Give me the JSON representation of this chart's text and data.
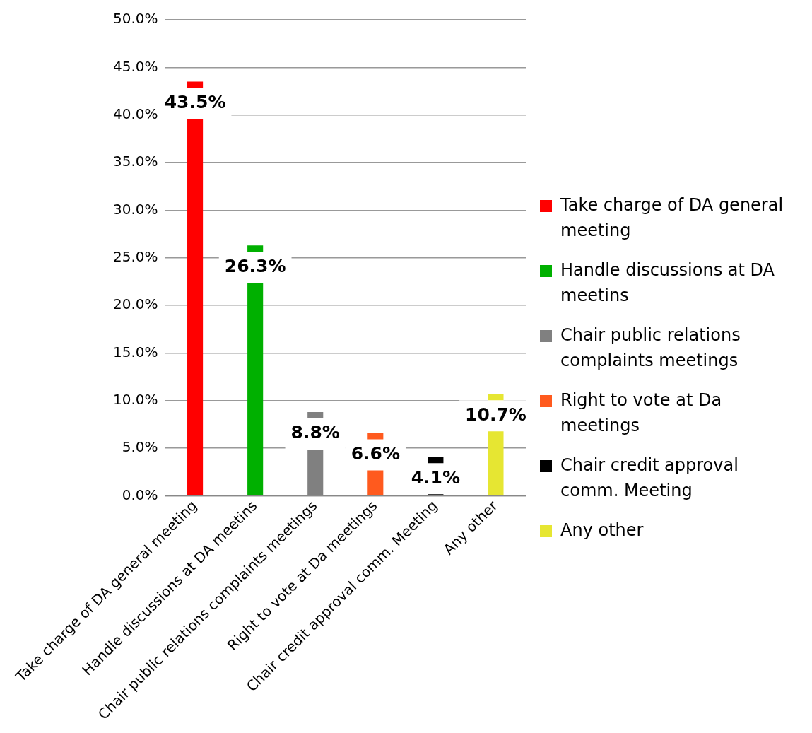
{
  "chart_data": {
    "type": "bar",
    "categories": [
      "Take charge of DA general meeting",
      "Handle discussions at DA meetins",
      "Chair public relations complaints meetings",
      "Right to vote at Da meetings",
      "Chair credit approval comm. Meeting",
      "Any other"
    ],
    "series": [
      {
        "name": "Take charge of DA general meeting",
        "color": "#ff0000",
        "values": [
          43.5,
          null,
          null,
          null,
          null,
          null
        ],
        "value_labels": [
          "43.5%",
          null,
          null,
          null,
          null,
          null
        ]
      },
      {
        "name": "Handle discussions at DA meetins",
        "color": "#00b000",
        "values": [
          null,
          26.3,
          null,
          null,
          null,
          null
        ],
        "value_labels": [
          null,
          "26.3%",
          null,
          null,
          null,
          null
        ]
      },
      {
        "name": "Chair public relations complaints meetings",
        "color": "#808080",
        "values": [
          null,
          null,
          8.8,
          null,
          null,
          null
        ],
        "value_labels": [
          null,
          null,
          "8.8%",
          null,
          null,
          null
        ]
      },
      {
        "name": "Right to vote at Da meetings",
        "color": "#ff5a1e",
        "values": [
          null,
          null,
          null,
          6.6,
          null,
          null
        ],
        "value_labels": [
          null,
          null,
          null,
          "6.6%",
          null,
          null
        ]
      },
      {
        "name": "Chair credit approval comm. Meeting",
        "color": "#000000",
        "values": [
          null,
          null,
          null,
          null,
          4.1,
          null
        ],
        "value_labels": [
          null,
          null,
          null,
          null,
          "4.1%",
          null
        ]
      },
      {
        "name": "Any other",
        "color": "#e6e632",
        "values": [
          null,
          null,
          null,
          null,
          null,
          10.7
        ],
        "value_labels": [
          null,
          null,
          null,
          null,
          null,
          "10.7%"
        ]
      }
    ],
    "ylim": [
      0,
      50
    ],
    "yticks": [
      {
        "value": 0,
        "label": "0.0%"
      },
      {
        "value": 5,
        "label": "5.0%"
      },
      {
        "value": 10,
        "label": "10.0%"
      },
      {
        "value": 15,
        "label": "15.0%"
      },
      {
        "value": 20,
        "label": "20.0%"
      },
      {
        "value": 25,
        "label": "25.0%"
      },
      {
        "value": 30,
        "label": "30.0%"
      },
      {
        "value": 35,
        "label": "35.0%"
      },
      {
        "value": 40,
        "label": "40.0%"
      },
      {
        "value": 45,
        "label": "45.0%"
      },
      {
        "value": 50,
        "label": "50.0%"
      }
    ],
    "grid": "y",
    "legend": "right"
  }
}
